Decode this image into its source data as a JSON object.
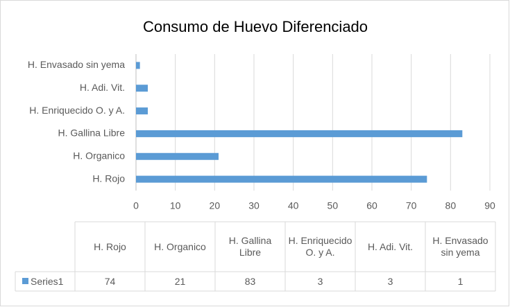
{
  "chart_data": {
    "type": "bar",
    "orientation": "horizontal",
    "title": "Consumo de Huevo Diferenciado",
    "categories": [
      "H. Rojo",
      "H. Organico",
      "H. Gallina Libre",
      "H. Enriquecido O. y A.",
      "H. Adi. Vit.",
      "H. Envasado sin yema"
    ],
    "series": [
      {
        "name": "Series1",
        "color": "#5b9bd5",
        "values": [
          74,
          21,
          83,
          3,
          3,
          1
        ]
      }
    ],
    "xlim": [
      0,
      90
    ],
    "xticks": [
      0,
      10,
      20,
      30,
      40,
      50,
      60,
      70,
      80,
      90
    ],
    "grid": true,
    "data_table": true
  }
}
